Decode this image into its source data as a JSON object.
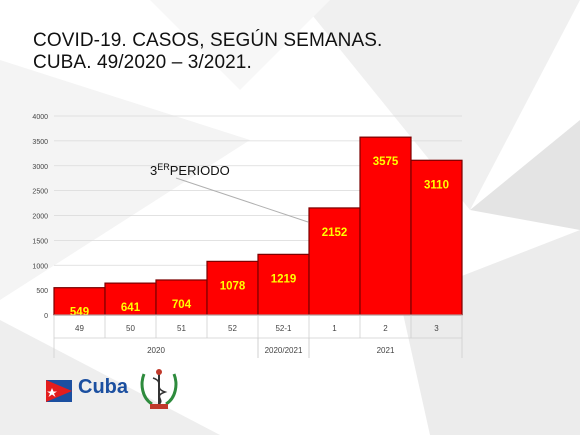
{
  "header": {
    "title_line1": "COVID-19. CASOS, SEGÚN SEMANAS.",
    "title_line2": "CUBA. 49/2020 – 3/2021."
  },
  "annotation": {
    "main": "3",
    "sup": "ER",
    "rest": "PERIODO"
  },
  "logo": {
    "text": "Cuba"
  },
  "colors": {
    "bar": "#ff0000",
    "bar_stroke": "#7a0000",
    "label": "#ffff00"
  },
  "chart_data": {
    "type": "bar",
    "categories": [
      "49",
      "50",
      "51",
      "52",
      "52-1",
      "1",
      "2",
      "3"
    ],
    "values": [
      549,
      641,
      704,
      1078,
      1219,
      2152,
      3575,
      3110
    ],
    "groups": [
      {
        "label": "2020",
        "from": 0,
        "to": 3
      },
      {
        "label": "2020/2021",
        "from": 4,
        "to": 4
      },
      {
        "label": "2021",
        "from": 5,
        "to": 7
      }
    ],
    "yticks": [
      "0",
      "500",
      "1000",
      "1500",
      "2000",
      "2500",
      "3000",
      "3500",
      "4000"
    ],
    "ylim": [
      0,
      4000
    ],
    "grid": true
  }
}
